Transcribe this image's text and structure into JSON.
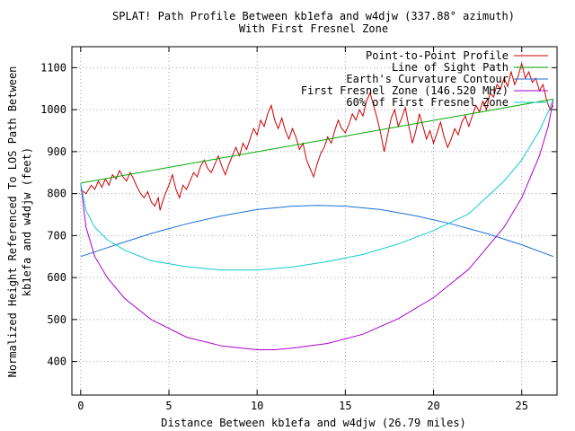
{
  "chart_data": {
    "type": "line",
    "title": "SPLAT! Path Profile Between kb1efa and w4djw (337.88° azimuth)",
    "subtitle": "With First Fresnel Zone",
    "xlabel": "Distance Between kb1efa and w4djw (26.79 miles)",
    "ylabel": "Normalized Height Referenced To LOS Path Between kb1efa and w4djw (feet)",
    "xlim": [
      -0.5,
      27
    ],
    "ylim": [
      320,
      1150
    ],
    "xticks": [
      0,
      5,
      10,
      15,
      20,
      25
    ],
    "yticks": [
      400,
      500,
      600,
      700,
      800,
      900,
      1000,
      1100
    ],
    "grid": true,
    "legend_position": "top-right",
    "series": [
      {
        "name": "Point-to-Point Profile",
        "color": "#cc0000",
        "points": [
          [
            0,
            810
          ],
          [
            0.3,
            800
          ],
          [
            0.6,
            820
          ],
          [
            0.8,
            810
          ],
          [
            1.0,
            830
          ],
          [
            1.2,
            815
          ],
          [
            1.4,
            835
          ],
          [
            1.6,
            820
          ],
          [
            1.8,
            845
          ],
          [
            2.0,
            835
          ],
          [
            2.2,
            855
          ],
          [
            2.4,
            840
          ],
          [
            2.6,
            830
          ],
          [
            2.8,
            850
          ],
          [
            3.0,
            835
          ],
          [
            3.2,
            815
          ],
          [
            3.4,
            800
          ],
          [
            3.6,
            790
          ],
          [
            3.8,
            805
          ],
          [
            4.0,
            780
          ],
          [
            4.2,
            770
          ],
          [
            4.4,
            790
          ],
          [
            4.5,
            760
          ],
          [
            4.6,
            775
          ],
          [
            4.8,
            800
          ],
          [
            5.0,
            820
          ],
          [
            5.2,
            845
          ],
          [
            5.4,
            810
          ],
          [
            5.6,
            790
          ],
          [
            5.8,
            820
          ],
          [
            6.0,
            810
          ],
          [
            6.2,
            830
          ],
          [
            6.4,
            850
          ],
          [
            6.6,
            840
          ],
          [
            6.8,
            865
          ],
          [
            7.0,
            880
          ],
          [
            7.2,
            860
          ],
          [
            7.4,
            850
          ],
          [
            7.6,
            870
          ],
          [
            7.8,
            890
          ],
          [
            8.0,
            865
          ],
          [
            8.2,
            845
          ],
          [
            8.4,
            870
          ],
          [
            8.6,
            890
          ],
          [
            8.8,
            910
          ],
          [
            9.0,
            890
          ],
          [
            9.2,
            920
          ],
          [
            9.4,
            905
          ],
          [
            9.6,
            930
          ],
          [
            9.8,
            955
          ],
          [
            10.0,
            940
          ],
          [
            10.2,
            975
          ],
          [
            10.4,
            960
          ],
          [
            10.6,
            990
          ],
          [
            10.8,
            1010
          ],
          [
            11.0,
            975
          ],
          [
            11.2,
            955
          ],
          [
            11.4,
            980
          ],
          [
            11.6,
            950
          ],
          [
            11.8,
            930
          ],
          [
            12.0,
            955
          ],
          [
            12.2,
            935
          ],
          [
            12.4,
            905
          ],
          [
            12.6,
            920
          ],
          [
            12.8,
            880
          ],
          [
            13.0,
            860
          ],
          [
            13.2,
            840
          ],
          [
            13.4,
            870
          ],
          [
            13.6,
            895
          ],
          [
            13.8,
            910
          ],
          [
            14.0,
            935
          ],
          [
            14.2,
            920
          ],
          [
            14.4,
            950
          ],
          [
            14.6,
            975
          ],
          [
            14.8,
            955
          ],
          [
            15.0,
            945
          ],
          [
            15.2,
            965
          ],
          [
            15.4,
            990
          ],
          [
            15.6,
            975
          ],
          [
            15.8,
            1000
          ],
          [
            16.0,
            985
          ],
          [
            16.2,
            1020
          ],
          [
            16.4,
            1040
          ],
          [
            16.6,
            1010
          ],
          [
            16.8,
            980
          ],
          [
            17.0,
            945
          ],
          [
            17.2,
            900
          ],
          [
            17.4,
            940
          ],
          [
            17.6,
            980
          ],
          [
            17.8,
            1000
          ],
          [
            18.0,
            960
          ],
          [
            18.2,
            980
          ],
          [
            18.4,
            1005
          ],
          [
            18.6,
            960
          ],
          [
            18.8,
            920
          ],
          [
            19.0,
            950
          ],
          [
            19.2,
            990
          ],
          [
            19.4,
            960
          ],
          [
            19.6,
            930
          ],
          [
            19.8,
            950
          ],
          [
            20.0,
            920
          ],
          [
            20.2,
            945
          ],
          [
            20.4,
            970
          ],
          [
            20.6,
            935
          ],
          [
            20.8,
            910
          ],
          [
            21.0,
            930
          ],
          [
            21.2,
            955
          ],
          [
            21.4,
            940
          ],
          [
            21.6,
            970
          ],
          [
            21.8,
            985
          ],
          [
            22.0,
            960
          ],
          [
            22.2,
            985
          ],
          [
            22.4,
            1010
          ],
          [
            22.6,
            995
          ],
          [
            22.8,
            1020
          ],
          [
            23.0,
            1000
          ],
          [
            23.2,
            1040
          ],
          [
            23.4,
            1030
          ],
          [
            23.6,
            1060
          ],
          [
            23.8,
            1050
          ],
          [
            24.0,
            1075
          ],
          [
            24.2,
            1055
          ],
          [
            24.4,
            1090
          ],
          [
            24.6,
            1060
          ],
          [
            24.8,
            1080
          ],
          [
            25.0,
            1110
          ],
          [
            25.2,
            1075
          ],
          [
            25.4,
            1090
          ],
          [
            25.6,
            1065
          ],
          [
            25.8,
            1075
          ],
          [
            26.0,
            1045
          ],
          [
            26.2,
            1060
          ],
          [
            26.4,
            1025
          ],
          [
            26.6,
            1000
          ],
          [
            26.79,
            1010
          ]
        ]
      },
      {
        "name": "Line of Sight Path",
        "color": "#00aa00",
        "points": [
          [
            0,
            825
          ],
          [
            26.79,
            1025
          ]
        ]
      },
      {
        "name": "Earth's Curvature Contour",
        "color": "#1a6fd6",
        "points": [
          [
            0,
            650
          ],
          [
            2,
            678
          ],
          [
            4,
            705
          ],
          [
            6,
            728
          ],
          [
            8,
            747
          ],
          [
            10,
            762
          ],
          [
            12,
            770
          ],
          [
            13.4,
            772
          ],
          [
            15,
            770
          ],
          [
            17,
            762
          ],
          [
            19,
            747
          ],
          [
            21,
            728
          ],
          [
            23,
            705
          ],
          [
            25,
            678
          ],
          [
            26.79,
            650
          ]
        ]
      },
      {
        "name": "First Fresnel Zone (146.520 MHz)",
        "color": "#aa00cc",
        "points": [
          [
            0,
            825
          ],
          [
            0.3,
            720
          ],
          [
            0.8,
            650
          ],
          [
            1.5,
            600
          ],
          [
            2.5,
            550
          ],
          [
            4,
            500
          ],
          [
            6,
            458
          ],
          [
            8,
            437
          ],
          [
            10,
            428
          ],
          [
            11,
            428
          ],
          [
            12,
            432
          ],
          [
            14,
            443
          ],
          [
            16,
            465
          ],
          [
            18,
            502
          ],
          [
            20,
            552
          ],
          [
            22,
            620
          ],
          [
            24,
            720
          ],
          [
            25,
            790
          ],
          [
            26,
            890
          ],
          [
            26.5,
            960
          ],
          [
            26.79,
            1025
          ]
        ]
      },
      {
        "name": "60% of First Fresnel Zone",
        "color": "#11cccc",
        "points": [
          [
            0,
            825
          ],
          [
            0.3,
            760
          ],
          [
            0.8,
            720
          ],
          [
            1.5,
            690
          ],
          [
            2.5,
            665
          ],
          [
            4,
            640
          ],
          [
            6,
            626
          ],
          [
            8,
            618
          ],
          [
            10,
            618
          ],
          [
            12,
            625
          ],
          [
            14,
            638
          ],
          [
            16,
            655
          ],
          [
            18,
            680
          ],
          [
            20,
            712
          ],
          [
            22,
            752
          ],
          [
            24,
            830
          ],
          [
            25,
            880
          ],
          [
            26,
            950
          ],
          [
            26.5,
            995
          ],
          [
            26.79,
            1025
          ]
        ]
      }
    ]
  }
}
